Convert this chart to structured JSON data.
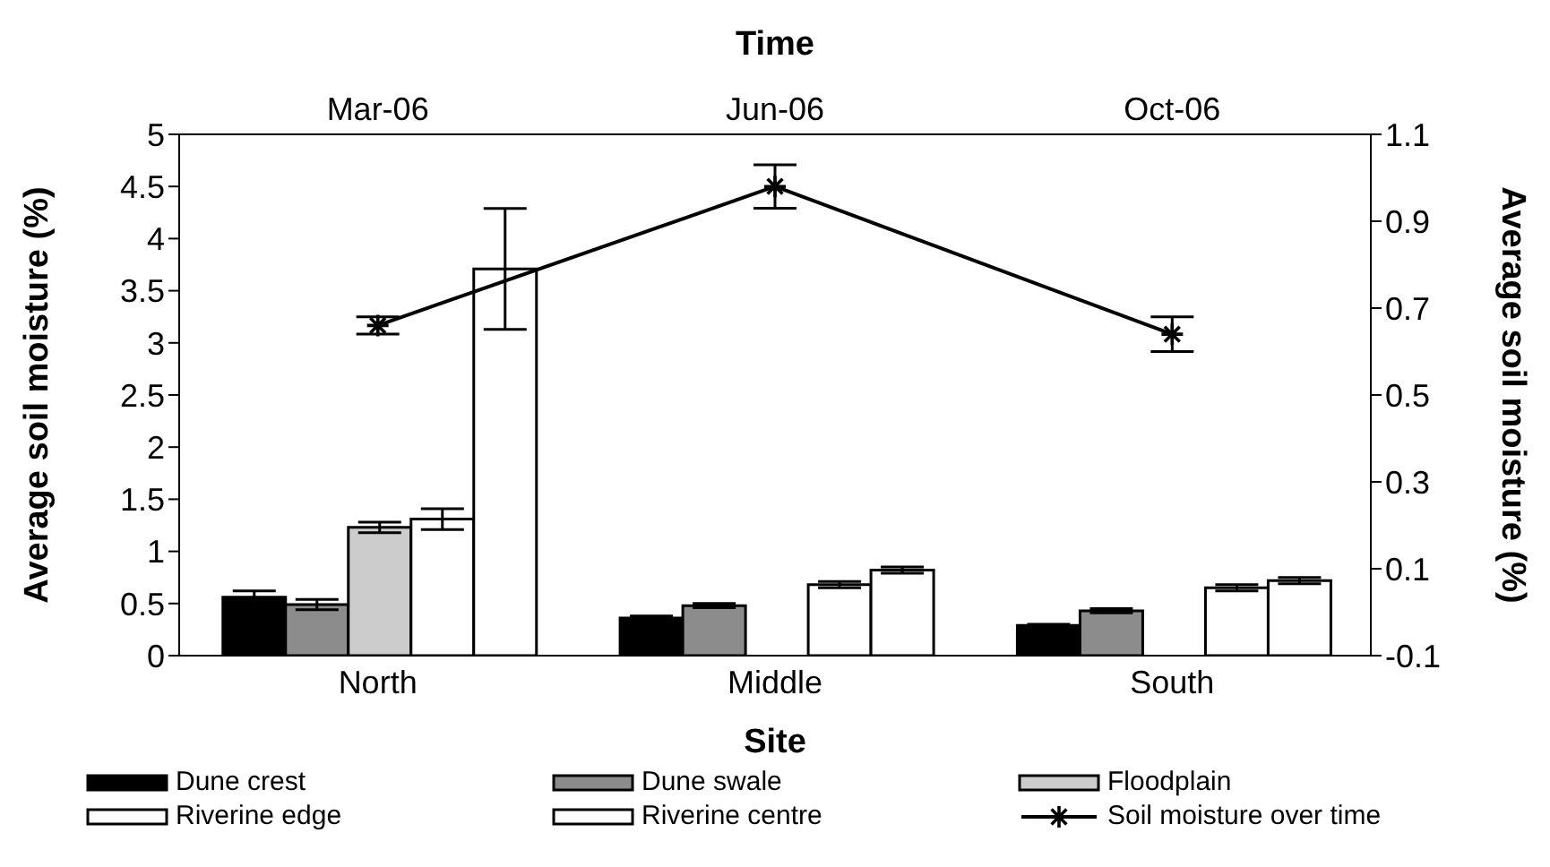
{
  "chart_data": {
    "type": "bar",
    "categories": [
      "North",
      "Middle",
      "South"
    ],
    "xlabel": "Site",
    "x2label": "Time",
    "annotations": [
      "Mar-06",
      "Jun-06",
      "Oct-06"
    ],
    "ylabel": "Average soil moisture (%)",
    "y2label": "Average soil moisture (%)",
    "ylim": [
      0,
      5
    ],
    "yticks": [
      0,
      0.5,
      1,
      1.5,
      2,
      2.5,
      3,
      3.5,
      4,
      4.5,
      5
    ],
    "y2lim": [
      -0.1,
      1.1
    ],
    "y2ticks": [
      -0.1,
      0.1,
      0.3,
      0.5,
      0.7,
      0.9,
      1.1
    ],
    "legend": "bottom",
    "series": [
      {
        "name": "Dune crest",
        "color": "#000000",
        "values": [
          0.56,
          0.36,
          0.29
        ],
        "errors": [
          0.06,
          0.02,
          0.01
        ]
      },
      {
        "name": "Dune swale",
        "color": "#8c8c8c",
        "values": [
          0.49,
          0.48,
          0.43
        ],
        "errors": [
          0.05,
          0.02,
          0.02
        ]
      },
      {
        "name": "Floodplain",
        "color": "#cccccc",
        "values": [
          1.23,
          0,
          0
        ],
        "errors": [
          0.05,
          null,
          null
        ]
      },
      {
        "name": "Riverine edge",
        "color": "#ffffff",
        "values": [
          1.31,
          0.68,
          0.65
        ],
        "errors": [
          0.1,
          0.03,
          0.03
        ]
      },
      {
        "name": "Riverine centre",
        "color": "#ffffff",
        "values": [
          3.71,
          0.82,
          0.72
        ],
        "errors": [
          0.58,
          0.03,
          0.03
        ]
      },
      {
        "name": "Soil moisture over time",
        "type": "line",
        "axis": "y2",
        "color": "#000000",
        "marker": "cross",
        "values": [
          0.66,
          0.98,
          0.64
        ],
        "errors": [
          0.02,
          0.05,
          0.04
        ]
      }
    ]
  }
}
